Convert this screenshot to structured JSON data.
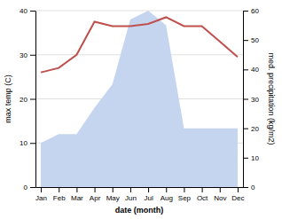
{
  "chart_data": {
    "type": "line",
    "xlabel": "date (month)",
    "ylabel": "max temp (C)",
    "y2label": "med. precipitation (kg/m2)",
    "categories": [
      "Jan",
      "Feb",
      "Mar",
      "Apr",
      "May",
      "Jun",
      "Jul",
      "Aug",
      "Sep",
      "Oct",
      "Nov",
      "Dec"
    ],
    "series": [
      {
        "type": "area",
        "axis": "y2",
        "color": "#c5d5f0",
        "values": [
          15,
          18,
          18,
          27,
          35,
          57,
          60,
          55,
          20,
          20,
          20,
          20
        ]
      },
      {
        "type": "line",
        "color": "#c0504d",
        "values": [
          26,
          27,
          30,
          37.5,
          36.5,
          36.5,
          37,
          38.5,
          36.5,
          36.5,
          33,
          29.5
        ]
      }
    ],
    "ylim": [
      0,
      40
    ],
    "yticks": [
      0,
      10,
      20,
      30,
      40
    ],
    "y2lim": [
      0,
      60
    ],
    "y2ticks": [
      0,
      10,
      20,
      30,
      40,
      50,
      60
    ],
    "grid": true
  }
}
